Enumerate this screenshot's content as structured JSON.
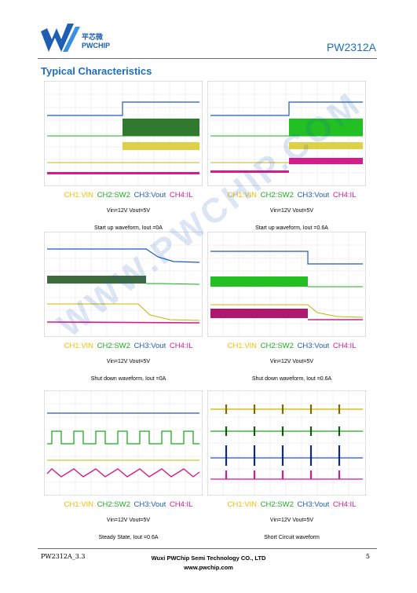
{
  "header": {
    "logo_cn": "平芯微",
    "logo_en": "PWCHIP",
    "part_number": "PW2312A"
  },
  "section_title": "Typical Characteristics",
  "watermark": "WWW.PWCHIP.COM",
  "colors": {
    "vin": "#f0c000",
    "sw": "#22aa22",
    "vout": "#1f58c8",
    "il": "#d81b8a",
    "title": "#1e6fc0"
  },
  "panels": [
    {
      "legend": {
        "ch1": "CH1:VIN",
        "ch2": "CH2:SW2",
        "ch3": "CH3:Vout",
        "ch4": "CH4:IL"
      },
      "condition": "Vin=12V Vout=5V",
      "description": "Start up waveform, Iout =0A"
    },
    {
      "legend": {
        "ch1": "CH1:VIN",
        "ch2": "CH2:SW2",
        "ch3": "CH3:Vout",
        "ch4": "CH4:IL"
      },
      "condition": "Vin=12V Vout=5V",
      "description": "Start up waveform, Iout =0.6A"
    },
    {
      "legend": {
        "ch1": "CH1:VIN",
        "ch2": "CH2:SW2",
        "ch3": "CH3:Vout",
        "ch4": "CH4:IL"
      },
      "condition": "Vin=12V Vout=5V",
      "description": "Shut down waveform, Iout =0A"
    },
    {
      "legend": {
        "ch1": "CH1:VIN",
        "ch2": "CH2:SW2",
        "ch3": "CH3:Vout",
        "ch4": "CH4:IL"
      },
      "condition": "Vin=12V Vout=5V",
      "description": "Shut down waveform, Iout =0.6A"
    },
    {
      "legend": {
        "ch1": "CH1:VIN",
        "ch2": "CH2:SW2",
        "ch3": "CH3:Vout",
        "ch4": "CH4:IL"
      },
      "condition": "Vin=12V Vout=5V",
      "description": "Steady State, Iout =0.6A"
    },
    {
      "legend": {
        "ch1": "CH1:VIN",
        "ch2": "CH2:SW2",
        "ch3": "CH3:Vout",
        "ch4": "CH4:IL"
      },
      "condition": "Vin=12V Vout=5V",
      "description": "Short Circuit waveform"
    }
  ],
  "footer": {
    "doc_id": "PW2312A_3.3",
    "company": "Wuxi PWChip Semi Technology CO., LTD",
    "website": "www.pwchip.com",
    "page": "5"
  }
}
